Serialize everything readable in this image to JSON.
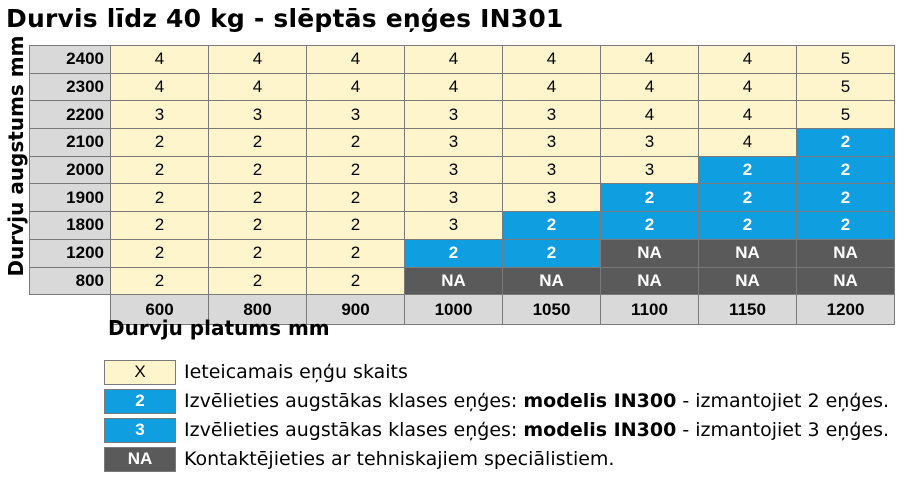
{
  "title": "Durvis līdz 40 kg - slēptās eņģes IN301",
  "y_axis_label": "Durvju augstums mm",
  "x_axis_label": "Durvju platums mm",
  "table": {
    "columns": [
      "600",
      "800",
      "900",
      "1000",
      "1050",
      "1100",
      "1150",
      "1200"
    ],
    "rows": [
      {
        "height": "2400",
        "cells": [
          "4",
          "4",
          "4",
          "4",
          "4",
          "4",
          "4",
          "5"
        ],
        "types": [
          "x",
          "x",
          "x",
          "x",
          "x",
          "x",
          "x",
          "x"
        ]
      },
      {
        "height": "2300",
        "cells": [
          "4",
          "4",
          "4",
          "4",
          "4",
          "4",
          "4",
          "5"
        ],
        "types": [
          "x",
          "x",
          "x",
          "x",
          "x",
          "x",
          "x",
          "x"
        ]
      },
      {
        "height": "2200",
        "cells": [
          "3",
          "3",
          "3",
          "3",
          "3",
          "4",
          "4",
          "5"
        ],
        "types": [
          "x",
          "x",
          "x",
          "x",
          "x",
          "x",
          "x",
          "x"
        ]
      },
      {
        "height": "2100",
        "cells": [
          "2",
          "2",
          "2",
          "3",
          "3",
          "3",
          "4",
          "2"
        ],
        "types": [
          "x",
          "x",
          "x",
          "x",
          "x",
          "x",
          "x",
          "2"
        ]
      },
      {
        "height": "2000",
        "cells": [
          "2",
          "2",
          "2",
          "3",
          "3",
          "3",
          "2",
          "2"
        ],
        "types": [
          "x",
          "x",
          "x",
          "x",
          "x",
          "x",
          "2",
          "2"
        ]
      },
      {
        "height": "1900",
        "cells": [
          "2",
          "2",
          "2",
          "3",
          "3",
          "2",
          "2",
          "2"
        ],
        "types": [
          "x",
          "x",
          "x",
          "x",
          "x",
          "2",
          "2",
          "2"
        ]
      },
      {
        "height": "1800",
        "cells": [
          "2",
          "2",
          "2",
          "3",
          "2",
          "2",
          "2",
          "2"
        ],
        "types": [
          "x",
          "x",
          "x",
          "x",
          "2",
          "2",
          "2",
          "2"
        ]
      },
      {
        "height": "1200",
        "cells": [
          "2",
          "2",
          "2",
          "2",
          "2",
          "NA",
          "NA",
          "NA"
        ],
        "types": [
          "x",
          "x",
          "x",
          "2",
          "2",
          "na",
          "na",
          "na"
        ]
      },
      {
        "height": "800",
        "cells": [
          "2",
          "2",
          "2",
          "NA",
          "NA",
          "NA",
          "NA",
          "NA"
        ],
        "types": [
          "x",
          "x",
          "x",
          "na",
          "na",
          "na",
          "na",
          "na"
        ]
      }
    ]
  },
  "legend": [
    {
      "swatch": "X",
      "type": "x",
      "text_before": "Ieteicamais eņģu skaits",
      "bold": "",
      "text_after": ""
    },
    {
      "swatch": "2",
      "type": "2",
      "text_before": "Izvēlieties augstākas klases eņģes: ",
      "bold": "modelis IN300",
      "text_after": " - izmantojiet 2 eņģes."
    },
    {
      "swatch": "3",
      "type": "3",
      "text_before": "Izvēlieties augstākas klases eņģes: ",
      "bold": "modelis IN300",
      "text_after": " - izmantojiet 3 eņģes."
    },
    {
      "swatch": "NA",
      "type": "na",
      "text_before": "Kontaktējieties ar tehniskajiem speciālistiem.",
      "bold": "",
      "text_after": ""
    }
  ],
  "colors": {
    "recommended": "#fff5cc",
    "upgrade_blue": "#0f9ee0",
    "not_available": "#5a5a5a",
    "header_gray": "#d9d9d9"
  }
}
